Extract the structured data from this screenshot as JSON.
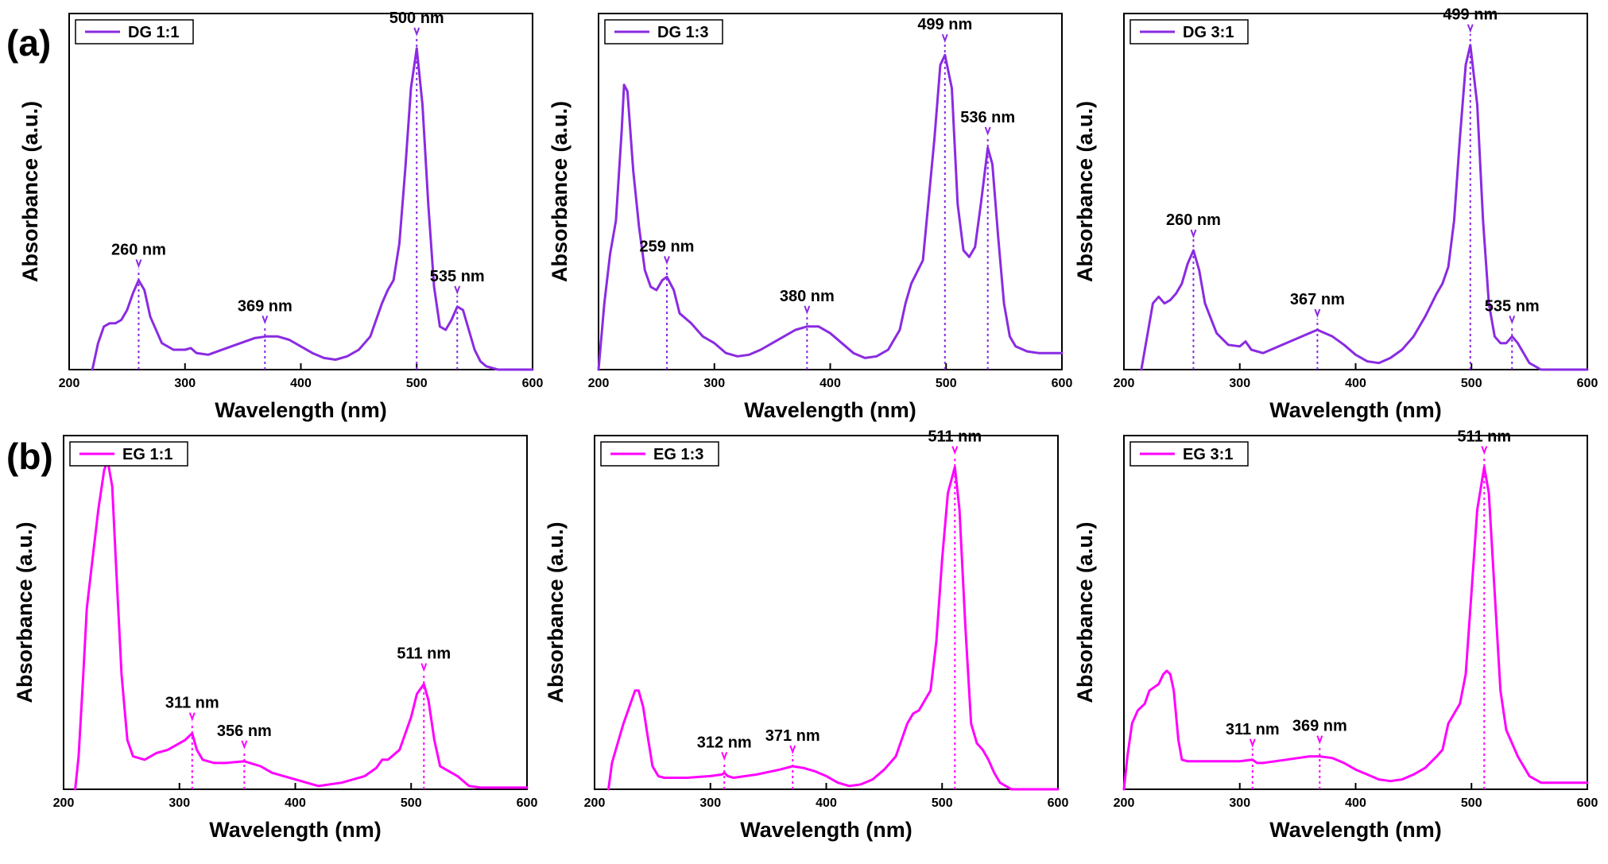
{
  "figure": {
    "panel_labels": [
      "(a)",
      "(b)"
    ]
  },
  "chart_data": [
    {
      "type": "line",
      "title": "",
      "legend": "DG 1:1",
      "legend_position": "top-left",
      "color": "#8a2be2",
      "xlabel": "Wavelength (nm)",
      "ylabel": "Absorbance (a.u.)",
      "xlim": [
        200,
        600
      ],
      "ylim": [
        0,
        1.0
      ],
      "xticks": [
        200,
        300,
        400,
        500,
        600
      ],
      "x": [
        220,
        225,
        230,
        235,
        240,
        245,
        250,
        255,
        260,
        265,
        270,
        280,
        290,
        300,
        305,
        310,
        320,
        340,
        360,
        370,
        380,
        390,
        400,
        410,
        420,
        430,
        440,
        450,
        460,
        470,
        475,
        480,
        485,
        490,
        495,
        500,
        505,
        510,
        515,
        520,
        525,
        530,
        535,
        540,
        545,
        550,
        555,
        560,
        570,
        580,
        590,
        600
      ],
      "values": [
        0.0,
        0.08,
        0.13,
        0.14,
        0.14,
        0.15,
        0.18,
        0.23,
        0.27,
        0.24,
        0.16,
        0.08,
        0.06,
        0.06,
        0.065,
        0.05,
        0.045,
        0.07,
        0.095,
        0.1,
        0.1,
        0.09,
        0.07,
        0.05,
        0.035,
        0.03,
        0.04,
        0.06,
        0.1,
        0.2,
        0.24,
        0.27,
        0.38,
        0.6,
        0.85,
        0.97,
        0.8,
        0.5,
        0.25,
        0.13,
        0.12,
        0.15,
        0.19,
        0.18,
        0.12,
        0.06,
        0.025,
        0.01,
        0.0,
        0.0,
        0.0,
        0.0
      ],
      "annotations": [
        {
          "text": "260 nm",
          "x": 260,
          "y": 0.27
        },
        {
          "text": "369 nm",
          "x": 369,
          "y": 0.1
        },
        {
          "text": "500 nm",
          "x": 500,
          "y": 0.97
        },
        {
          "text": "535 nm",
          "x": 535,
          "y": 0.19
        }
      ]
    },
    {
      "type": "line",
      "title": "",
      "legend": "DG 1:3",
      "legend_position": "top-left",
      "color": "#8a2be2",
      "xlabel": "Wavelength (nm)",
      "ylabel": "Absorbance (a.u.)",
      "xlim": [
        200,
        600
      ],
      "ylim": [
        0,
        1.0
      ],
      "xticks": [
        200,
        300,
        400,
        500,
        600
      ],
      "x": [
        200,
        205,
        210,
        215,
        220,
        222,
        225,
        230,
        235,
        240,
        245,
        250,
        255,
        259,
        265,
        270,
        280,
        290,
        300,
        310,
        320,
        330,
        340,
        350,
        360,
        370,
        380,
        390,
        400,
        410,
        420,
        430,
        440,
        450,
        460,
        465,
        470,
        480,
        490,
        495,
        499,
        505,
        510,
        515,
        520,
        525,
        530,
        536,
        540,
        545,
        550,
        555,
        560,
        570,
        580,
        590,
        600
      ],
      "values": [
        0.0,
        0.2,
        0.35,
        0.45,
        0.72,
        0.86,
        0.84,
        0.6,
        0.43,
        0.3,
        0.25,
        0.24,
        0.27,
        0.28,
        0.24,
        0.17,
        0.14,
        0.1,
        0.08,
        0.05,
        0.04,
        0.045,
        0.06,
        0.08,
        0.1,
        0.12,
        0.13,
        0.13,
        0.11,
        0.08,
        0.05,
        0.035,
        0.04,
        0.06,
        0.12,
        0.2,
        0.26,
        0.33,
        0.7,
        0.92,
        0.95,
        0.85,
        0.5,
        0.36,
        0.34,
        0.37,
        0.5,
        0.67,
        0.62,
        0.4,
        0.2,
        0.1,
        0.07,
        0.055,
        0.05,
        0.05,
        0.05
      ],
      "annotations": [
        {
          "text": "259 nm",
          "x": 259,
          "y": 0.28
        },
        {
          "text": "380 nm",
          "x": 380,
          "y": 0.13
        },
        {
          "text": "499 nm",
          "x": 499,
          "y": 0.95
        },
        {
          "text": "536 nm",
          "x": 536,
          "y": 0.67
        }
      ]
    },
    {
      "type": "line",
      "title": "",
      "legend": "DG 3:1",
      "legend_position": "top-left",
      "color": "#8a2be2",
      "xlabel": "Wavelength (nm)",
      "ylabel": "Absorbance (a.u.)",
      "xlim": [
        200,
        600
      ],
      "ylim": [
        0,
        1.0
      ],
      "xticks": [
        200,
        300,
        400,
        500,
        600
      ],
      "x": [
        215,
        220,
        225,
        230,
        235,
        240,
        245,
        250,
        255,
        260,
        265,
        270,
        280,
        290,
        300,
        305,
        310,
        320,
        340,
        360,
        367,
        380,
        390,
        400,
        410,
        420,
        430,
        440,
        450,
        460,
        470,
        475,
        480,
        485,
        490,
        495,
        499,
        505,
        510,
        515,
        520,
        525,
        530,
        535,
        540,
        545,
        550,
        560,
        570,
        580,
        590,
        600
      ],
      "values": [
        0.0,
        0.1,
        0.2,
        0.22,
        0.2,
        0.21,
        0.23,
        0.26,
        0.32,
        0.36,
        0.3,
        0.2,
        0.11,
        0.075,
        0.07,
        0.085,
        0.06,
        0.05,
        0.08,
        0.11,
        0.12,
        0.1,
        0.075,
        0.045,
        0.025,
        0.02,
        0.035,
        0.06,
        0.1,
        0.16,
        0.23,
        0.26,
        0.31,
        0.45,
        0.7,
        0.92,
        0.98,
        0.8,
        0.45,
        0.2,
        0.1,
        0.08,
        0.08,
        0.1,
        0.08,
        0.05,
        0.02,
        0.0,
        0.0,
        0.0,
        0.0,
        0.0
      ],
      "annotations": [
        {
          "text": "260 nm",
          "x": 260,
          "y": 0.36
        },
        {
          "text": "367 nm",
          "x": 367,
          "y": 0.12
        },
        {
          "text": "499 nm",
          "x": 499,
          "y": 0.98
        },
        {
          "text": "535 nm",
          "x": 535,
          "y": 0.1
        }
      ]
    },
    {
      "type": "line",
      "title": "",
      "legend": "EG 1:1",
      "legend_position": "top-left",
      "color": "#ff00ff",
      "xlabel": "Wavelength (nm)",
      "ylabel": "Absorbance (a.u.)",
      "xlim": [
        200,
        600
      ],
      "ylim": [
        0,
        1.0
      ],
      "xticks": [
        200,
        300,
        400,
        500,
        600
      ],
      "x": [
        210,
        213,
        217,
        220,
        225,
        230,
        235,
        238,
        242,
        245,
        250,
        255,
        260,
        270,
        280,
        290,
        300,
        305,
        311,
        315,
        320,
        330,
        340,
        356,
        370,
        380,
        400,
        420,
        440,
        460,
        470,
        475,
        480,
        490,
        500,
        505,
        511,
        515,
        520,
        525,
        530,
        540,
        550,
        560,
        580,
        600
      ],
      "values": [
        0.0,
        0.1,
        0.35,
        0.55,
        0.7,
        0.85,
        0.97,
        1.0,
        0.92,
        0.7,
        0.35,
        0.15,
        0.1,
        0.09,
        0.11,
        0.12,
        0.14,
        0.15,
        0.17,
        0.12,
        0.09,
        0.08,
        0.08,
        0.085,
        0.07,
        0.05,
        0.03,
        0.01,
        0.02,
        0.04,
        0.065,
        0.09,
        0.09,
        0.12,
        0.22,
        0.29,
        0.32,
        0.27,
        0.15,
        0.07,
        0.06,
        0.04,
        0.01,
        0.005,
        0.005,
        0.005
      ],
      "annotations": [
        {
          "text": "311 nm",
          "x": 311,
          "y": 0.17
        },
        {
          "text": "356 nm",
          "x": 356,
          "y": 0.085
        },
        {
          "text": "511 nm",
          "x": 511,
          "y": 0.32
        }
      ]
    },
    {
      "type": "line",
      "title": "",
      "legend": "EG 1:3",
      "legend_position": "top-left",
      "color": "#ff00ff",
      "xlabel": "Wavelength (nm)",
      "ylabel": "Absorbance (a.u.)",
      "xlim": [
        200,
        600
      ],
      "ylim": [
        0,
        1.0
      ],
      "xticks": [
        200,
        300,
        400,
        500,
        600
      ],
      "x": [
        212,
        215,
        220,
        225,
        230,
        235,
        238,
        242,
        245,
        250,
        255,
        260,
        280,
        300,
        310,
        312,
        315,
        320,
        340,
        360,
        371,
        380,
        390,
        400,
        410,
        420,
        430,
        440,
        450,
        460,
        470,
        475,
        480,
        490,
        495,
        500,
        505,
        511,
        515,
        520,
        525,
        530,
        535,
        540,
        545,
        550,
        555,
        560,
        570,
        580,
        600
      ],
      "values": [
        0.0,
        0.08,
        0.14,
        0.2,
        0.25,
        0.3,
        0.3,
        0.25,
        0.18,
        0.07,
        0.04,
        0.035,
        0.035,
        0.04,
        0.045,
        0.05,
        0.04,
        0.035,
        0.045,
        0.06,
        0.07,
        0.065,
        0.055,
        0.04,
        0.02,
        0.01,
        0.015,
        0.03,
        0.06,
        0.1,
        0.2,
        0.23,
        0.24,
        0.3,
        0.45,
        0.7,
        0.9,
        0.98,
        0.85,
        0.5,
        0.2,
        0.14,
        0.12,
        0.09,
        0.05,
        0.02,
        0.01,
        0.0,
        0.0,
        0.0,
        0.0
      ],
      "annotations": [
        {
          "text": "312 nm",
          "x": 312,
          "y": 0.05
        },
        {
          "text": "371 nm",
          "x": 371,
          "y": 0.07
        },
        {
          "text": "511 nm",
          "x": 511,
          "y": 0.98
        }
      ]
    },
    {
      "type": "line",
      "title": "",
      "legend": "EG 3:1",
      "legend_position": "top-left",
      "color": "#ff00ff",
      "xlabel": "Wavelength (nm)",
      "ylabel": "Absorbance (a.u.)",
      "xlim": [
        200,
        600
      ],
      "ylim": [
        0,
        1.0
      ],
      "xticks": [
        200,
        300,
        400,
        500,
        600
      ],
      "x": [
        200,
        203,
        207,
        212,
        218,
        222,
        226,
        230,
        234,
        237,
        240,
        243,
        247,
        250,
        255,
        260,
        280,
        300,
        311,
        315,
        320,
        340,
        360,
        369,
        380,
        390,
        400,
        410,
        420,
        430,
        440,
        450,
        460,
        470,
        475,
        480,
        490,
        495,
        500,
        505,
        511,
        515,
        520,
        525,
        530,
        535,
        540,
        545,
        550,
        560,
        570,
        580,
        600
      ],
      "values": [
        0.0,
        0.1,
        0.2,
        0.24,
        0.26,
        0.3,
        0.31,
        0.32,
        0.35,
        0.36,
        0.35,
        0.3,
        0.15,
        0.09,
        0.085,
        0.085,
        0.085,
        0.085,
        0.09,
        0.08,
        0.08,
        0.09,
        0.1,
        0.1,
        0.095,
        0.08,
        0.06,
        0.045,
        0.03,
        0.025,
        0.03,
        0.045,
        0.065,
        0.1,
        0.12,
        0.2,
        0.26,
        0.35,
        0.6,
        0.85,
        0.98,
        0.9,
        0.6,
        0.3,
        0.18,
        0.14,
        0.1,
        0.07,
        0.04,
        0.02,
        0.02,
        0.02,
        0.02
      ],
      "annotations": [
        {
          "text": "311 nm",
          "x": 311,
          "y": 0.09
        },
        {
          "text": "369 nm",
          "x": 369,
          "y": 0.1
        },
        {
          "text": "511 nm",
          "x": 511,
          "y": 0.98
        }
      ]
    }
  ]
}
